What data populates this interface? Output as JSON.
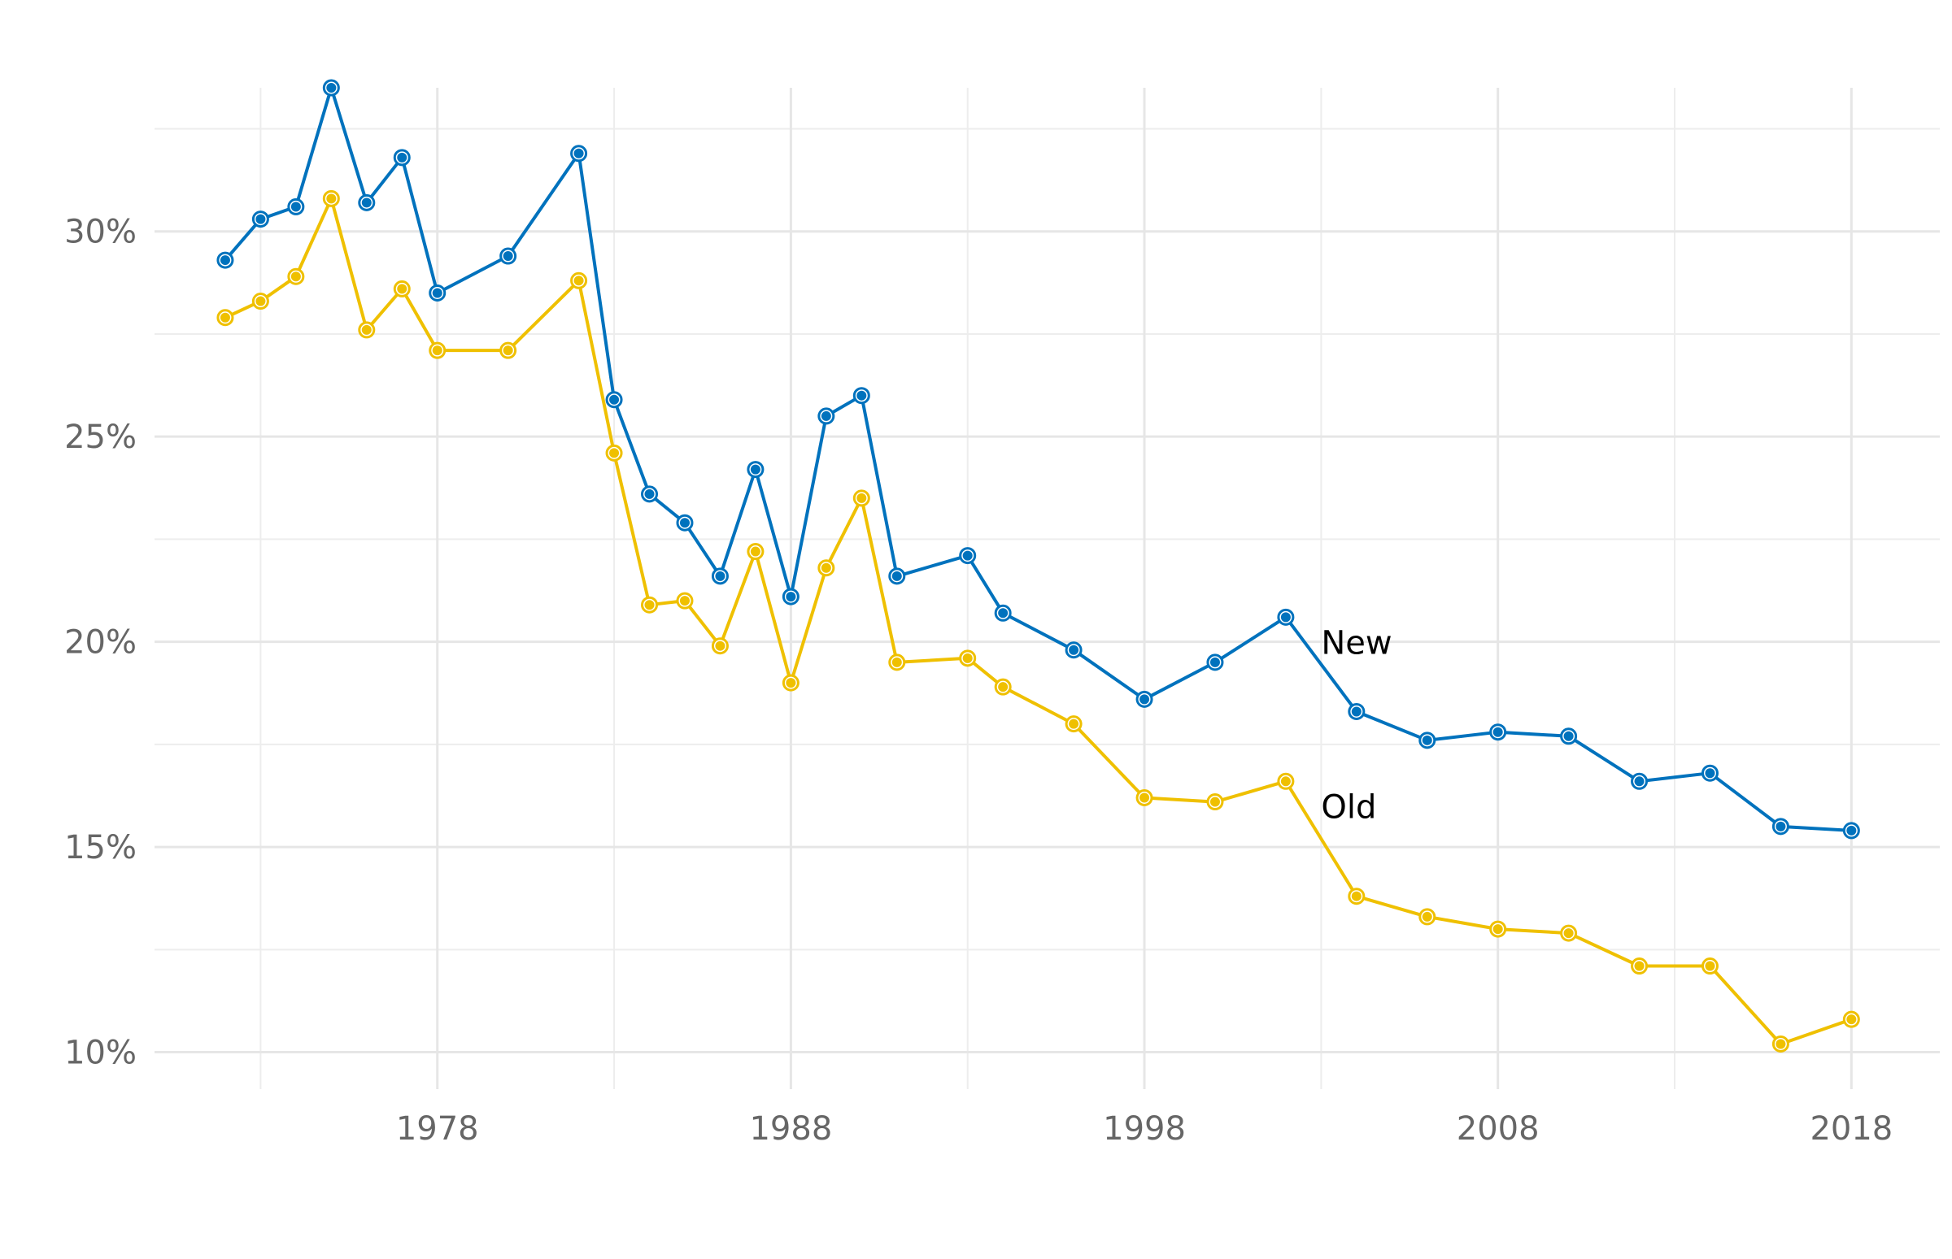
{
  "chart_data": {
    "type": "line",
    "title": "",
    "xlabel": "",
    "ylabel": "",
    "xlim": [
      1970,
      2020.5
    ],
    "ylim": [
      9.1,
      33.5
    ],
    "x_ticks": [
      1978,
      1988,
      1998,
      2008,
      2018
    ],
    "y_ticks": [
      10,
      15,
      20,
      25,
      30
    ],
    "x_tick_labels": [
      "1978",
      "1988",
      "1998",
      "2008",
      "2018"
    ],
    "y_tick_labels": [
      "10%",
      "15%",
      "20%",
      "25%",
      "30%"
    ],
    "grid": true,
    "legend": "none (direct labels)",
    "x": [
      1972,
      1973,
      1974,
      1975,
      1976,
      1977,
      1978,
      1980,
      1982,
      1983,
      1984,
      1985,
      1986,
      1987,
      1988,
      1989,
      1990,
      1991,
      1993,
      1994,
      1996,
      1998,
      2000,
      2002,
      2004,
      2006,
      2008,
      2010,
      2012,
      2014,
      2016,
      2018
    ],
    "series": [
      {
        "name": "New",
        "color": "#0072bd",
        "values": [
          29.3,
          30.3,
          30.6,
          33.5,
          30.7,
          31.8,
          28.5,
          29.4,
          31.9,
          25.9,
          23.6,
          22.9,
          21.6,
          24.2,
          21.1,
          25.5,
          26.0,
          21.6,
          22.1,
          20.7,
          19.8,
          18.6,
          19.5,
          20.6,
          18.3,
          17.6,
          17.8,
          17.7,
          16.6,
          16.8,
          15.5,
          15.4
        ]
      },
      {
        "name": "Old",
        "color": "#efc000",
        "values": [
          27.9,
          28.3,
          28.9,
          30.8,
          27.6,
          28.6,
          27.1,
          27.1,
          28.8,
          24.6,
          20.9,
          21.0,
          19.9,
          22.2,
          19.0,
          21.8,
          23.5,
          19.5,
          19.6,
          18.9,
          18.0,
          16.2,
          16.1,
          16.6,
          13.8,
          13.3,
          13.0,
          12.9,
          12.1,
          12.1,
          10.2,
          10.8
        ]
      }
    ],
    "annotations": [
      {
        "text": "New",
        "series": "New"
      },
      {
        "text": "Old",
        "series": "Old"
      }
    ]
  }
}
